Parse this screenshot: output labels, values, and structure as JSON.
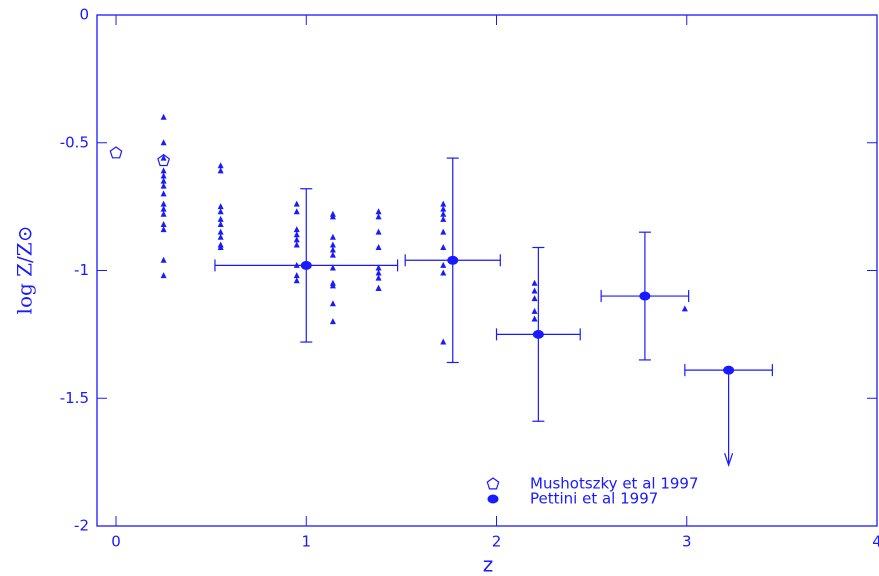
{
  "chart_data": {
    "type": "scatter",
    "xlabel": "z",
    "ylabel": "log Z/Z⊙",
    "xlim": [
      -0.1,
      4.0
    ],
    "ylim": [
      -2,
      0
    ],
    "xticks": [
      0,
      1,
      2,
      3,
      4
    ],
    "yticks": [
      0,
      -0.5,
      -1,
      -1.5,
      -2
    ],
    "color": "#1a1aff",
    "legend": "lower right",
    "series": [
      {
        "marker": "triangle",
        "x": [
          0.25,
          0.25,
          0.25,
          0.25,
          0.25,
          0.25,
          0.25,
          0.25,
          0.25,
          0.25,
          0.25,
          0.25,
          0.25,
          0.25,
          0.25,
          0.55,
          0.55,
          0.55,
          0.55,
          0.55,
          0.55,
          0.55,
          0.55,
          0.55,
          0.55,
          0.95,
          0.95,
          0.95,
          0.95,
          0.95,
          0.95,
          0.95,
          0.95,
          0.95,
          1.14,
          1.14,
          1.14,
          1.14,
          1.14,
          1.14,
          1.14,
          1.14,
          1.14,
          1.14,
          1.14,
          1.38,
          1.38,
          1.38,
          1.38,
          1.38,
          1.38,
          1.38,
          1.38,
          1.38,
          1.72,
          1.72,
          1.72,
          1.72,
          1.72,
          1.72,
          1.72,
          1.72,
          1.72,
          2.2,
          2.2,
          2.2,
          2.2,
          2.2,
          2.99
        ],
        "values": [
          -0.4,
          -0.5,
          -0.56,
          -0.61,
          -0.63,
          -0.65,
          -0.67,
          -0.7,
          -0.74,
          -0.76,
          -0.78,
          -0.82,
          -0.84,
          -0.96,
          -1.02,
          -0.59,
          -0.61,
          -0.75,
          -0.77,
          -0.8,
          -0.82,
          -0.85,
          -0.87,
          -0.9,
          -0.91,
          -0.74,
          -0.77,
          -0.84,
          -0.86,
          -0.88,
          -0.9,
          -0.98,
          -1.02,
          -1.04,
          -0.78,
          -0.79,
          -0.87,
          -0.9,
          -0.92,
          -0.94,
          -0.99,
          -1.05,
          -1.06,
          -1.13,
          -1.2,
          -0.77,
          -0.79,
          -0.85,
          -0.91,
          -0.99,
          -1.01,
          -1.03,
          -1.07,
          -1.07,
          -0.74,
          -0.76,
          -0.78,
          -0.8,
          -0.85,
          -0.91,
          -0.98,
          -1.01,
          -1.28,
          -1.05,
          -1.08,
          -1.11,
          -1.16,
          -1.19,
          -1.15
        ]
      },
      {
        "name": "Mushotszky et al 1997",
        "marker": "pentagon-open",
        "x": [
          0.0,
          0.25
        ],
        "values": [
          -0.54,
          -0.57
        ]
      },
      {
        "name": "Pettini et al 1997",
        "marker": "circle-filled",
        "x": [
          1.0,
          1.77,
          2.22,
          2.78,
          3.22
        ],
        "values": [
          -0.98,
          -0.96,
          -1.25,
          -1.1,
          -1.39
        ],
        "xerr": [
          0.48,
          0.25,
          0.22,
          0.23,
          0.23
        ],
        "yerr": [
          0.3,
          0.4,
          0.34,
          0.25,
          null
        ],
        "upper_limit": [
          false,
          false,
          false,
          false,
          true
        ]
      }
    ]
  }
}
